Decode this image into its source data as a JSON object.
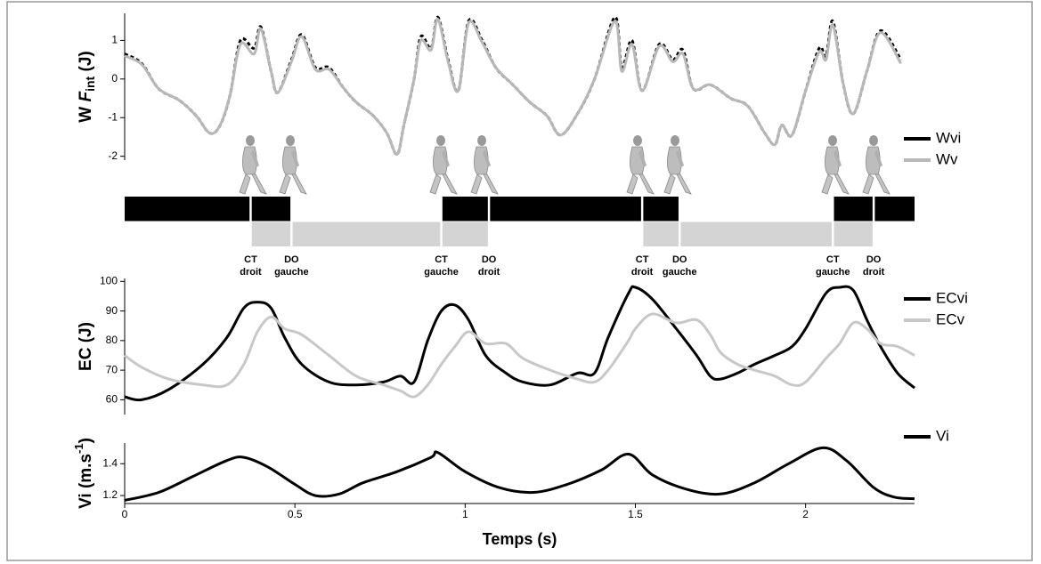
{
  "chart_data": [
    {
      "type": "line",
      "ylabel": {
        "prefix": "W ",
        "var": "F",
        "sub": "int",
        "suffix": " (J)"
      },
      "xlim": [
        0,
        2.32
      ],
      "ylim": [
        -2.1,
        1.7
      ],
      "yticks": [
        -2,
        -1,
        0,
        1
      ],
      "x": [
        0,
        0.05,
        0.1,
        0.16,
        0.21,
        0.25,
        0.28,
        0.31,
        0.34,
        0.38,
        0.4,
        0.43,
        0.45,
        0.49,
        0.52,
        0.56,
        0.6,
        0.64,
        0.68,
        0.73,
        0.77,
        0.8,
        0.82,
        0.85,
        0.87,
        0.9,
        0.92,
        0.95,
        0.98,
        1.01,
        1.05,
        1.09,
        1.14,
        1.19,
        1.24,
        1.28,
        1.33,
        1.38,
        1.44,
        1.46,
        1.49,
        1.52,
        1.57,
        1.61,
        1.64,
        1.67,
        1.72,
        1.78,
        1.83,
        1.88,
        1.91,
        1.93,
        1.96,
        2.0,
        2.04,
        2.06,
        2.08,
        2.11,
        2.14,
        2.18,
        2.22,
        2.28
      ],
      "series": [
        {
          "name": "Wvi",
          "color": "#000000",
          "dashed": true,
          "values": [
            0.65,
            0.4,
            -0.25,
            -0.55,
            -0.95,
            -1.4,
            -1.2,
            -0.4,
            1.0,
            0.8,
            1.35,
            0.2,
            -0.35,
            0.5,
            1.15,
            0.3,
            0.3,
            -0.2,
            -0.6,
            -0.95,
            -1.4,
            -1.95,
            -1.2,
            0.0,
            1.1,
            0.8,
            1.6,
            0.5,
            -0.3,
            1.5,
            1.0,
            0.3,
            -0.15,
            -0.6,
            -0.95,
            -1.45,
            -0.9,
            0.0,
            1.6,
            0.3,
            1.0,
            -0.3,
            0.9,
            0.5,
            0.75,
            -0.25,
            -0.15,
            -0.5,
            -0.7,
            -1.4,
            -1.7,
            -1.2,
            -1.45,
            -0.3,
            0.8,
            0.6,
            1.5,
            -0.1,
            -0.9,
            0.2,
            1.25,
            0.5
          ]
        },
        {
          "name": "Wv",
          "color": "#b8b8b8",
          "dashed": false,
          "values": [
            0.6,
            0.38,
            -0.25,
            -0.55,
            -0.95,
            -1.4,
            -1.2,
            -0.4,
            0.9,
            0.65,
            1.3,
            0.2,
            -0.35,
            0.45,
            1.1,
            0.25,
            0.25,
            -0.2,
            -0.6,
            -0.95,
            -1.4,
            -1.95,
            -1.2,
            0.0,
            1.0,
            0.75,
            1.55,
            0.45,
            -0.3,
            1.45,
            0.95,
            0.3,
            -0.15,
            -0.6,
            -0.95,
            -1.45,
            -0.9,
            0.0,
            1.5,
            0.2,
            0.9,
            -0.3,
            0.85,
            0.45,
            0.65,
            -0.25,
            -0.15,
            -0.5,
            -0.7,
            -1.4,
            -1.7,
            -1.2,
            -1.45,
            -0.3,
            0.7,
            0.5,
            1.4,
            -0.1,
            -0.9,
            0.2,
            1.2,
            0.4
          ]
        }
      ]
    },
    {
      "type": "phases",
      "xlim": [
        0,
        2.32
      ],
      "rows": [
        {
          "color": "#000000",
          "spans": [
            [
              0,
              0.49
            ],
            [
              0.93,
              1.63
            ],
            [
              2.08,
              2.32
            ]
          ]
        },
        {
          "color": "#d4d4d4",
          "spans": [
            [
              0.37,
              1.07
            ],
            [
              1.52,
              2.2
            ]
          ]
        }
      ],
      "events": [
        {
          "x": 0.37,
          "label": [
            "CT",
            "droit"
          ]
        },
        {
          "x": 0.49,
          "label": [
            "DO",
            "gauche"
          ]
        },
        {
          "x": 0.93,
          "label": [
            "CT",
            "gauche"
          ]
        },
        {
          "x": 1.07,
          "label": [
            "DO",
            "droit"
          ]
        },
        {
          "x": 1.52,
          "label": [
            "CT",
            "droit"
          ]
        },
        {
          "x": 1.63,
          "label": [
            "DO",
            "gauche"
          ]
        },
        {
          "x": 2.08,
          "label": [
            "CT",
            "gauche"
          ]
        },
        {
          "x": 2.2,
          "label": [
            "DO",
            "droit"
          ]
        }
      ]
    },
    {
      "type": "line",
      "ylabel": {
        "prefix": "EC (J)"
      },
      "xlim": [
        0,
        2.32
      ],
      "ylim": [
        55,
        101
      ],
      "yticks": [
        60,
        70,
        80,
        90,
        100
      ],
      "x": [
        0,
        0.05,
        0.13,
        0.23,
        0.3,
        0.35,
        0.39,
        0.43,
        0.47,
        0.52,
        0.6,
        0.68,
        0.76,
        0.81,
        0.85,
        0.89,
        0.93,
        0.97,
        1.01,
        1.06,
        1.12,
        1.17,
        1.25,
        1.33,
        1.38,
        1.42,
        1.48,
        1.5,
        1.55,
        1.62,
        1.68,
        1.72,
        1.75,
        1.8,
        1.85,
        1.91,
        1.96,
        2.0,
        2.06,
        2.1,
        2.14,
        2.18,
        2.22,
        2.27,
        2.32
      ],
      "series": [
        {
          "name": "ECvi",
          "color": "#000000",
          "dashed": false,
          "values": [
            61,
            60,
            63.5,
            72,
            81,
            91,
            93,
            91,
            81,
            72,
            66,
            65,
            66,
            68,
            66,
            80,
            90,
            92,
            87,
            75,
            69,
            66,
            65,
            69,
            69,
            81,
            96,
            98,
            94,
            84,
            75,
            68,
            67,
            69,
            72,
            75,
            78,
            84,
            96,
            98,
            97,
            87,
            78,
            69,
            64
          ]
        },
        {
          "name": "ECv",
          "color": "#c8c8c8",
          "dashed": false,
          "values": [
            75,
            71,
            67,
            65,
            65,
            72,
            83,
            88,
            84,
            82,
            75,
            68,
            65,
            63,
            61,
            65,
            72,
            78,
            83,
            79,
            79,
            74,
            70,
            67,
            66,
            70,
            80,
            84,
            89,
            86,
            87,
            82,
            76,
            72,
            70,
            68,
            65,
            66,
            74,
            79,
            86,
            84,
            79,
            78,
            75
          ]
        }
      ]
    },
    {
      "type": "line",
      "ylabel": {
        "prefix": "Vi (m.s",
        "sup": "-1",
        "suffix": ")"
      },
      "xlabel": "Temps (s)",
      "xlim": [
        0,
        2.32
      ],
      "ylim": [
        1.15,
        1.53
      ],
      "yticks": [
        1.2,
        1.4
      ],
      "xticks": [
        0,
        0.5,
        1,
        1.5,
        2
      ],
      "x": [
        0,
        0.1,
        0.2,
        0.3,
        0.35,
        0.42,
        0.5,
        0.56,
        0.63,
        0.7,
        0.8,
        0.9,
        0.92,
        1.0,
        1.1,
        1.2,
        1.3,
        1.4,
        1.48,
        1.55,
        1.65,
        1.75,
        1.85,
        1.95,
        2.05,
        2.12,
        2.2,
        2.26,
        2.32
      ],
      "series": [
        {
          "name": "Vi",
          "color": "#000000",
          "dashed": false,
          "values": [
            1.17,
            1.22,
            1.32,
            1.42,
            1.44,
            1.38,
            1.27,
            1.2,
            1.21,
            1.28,
            1.35,
            1.44,
            1.47,
            1.35,
            1.25,
            1.22,
            1.27,
            1.36,
            1.46,
            1.33,
            1.24,
            1.21,
            1.28,
            1.4,
            1.5,
            1.42,
            1.25,
            1.19,
            1.18
          ]
        }
      ]
    }
  ]
}
